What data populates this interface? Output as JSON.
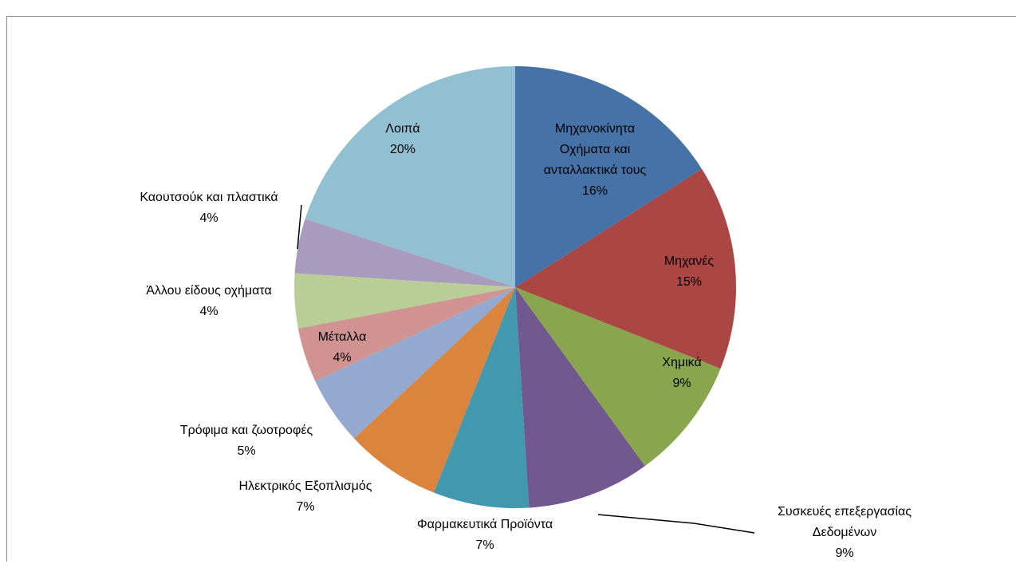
{
  "chart_data": {
    "type": "pie",
    "categories": [
      "Μηχανοκίνητα Οχήματα και ανταλλακτικά τους",
      "Μηχανές",
      "Χημικά",
      "Συσκευές επεξεργασίας Δεδομένων",
      "Φαρμακευτικά Προϊόντα",
      "Ηλεκτρικός Εξοπλισμός",
      "Τρόφιμα και ζωοτροφές",
      "Μέταλλα",
      "Άλλου είδους οχήματα",
      "Καουτσούκ και πλαστικά",
      "Λοιπά"
    ],
    "values": [
      16,
      15,
      9,
      9,
      7,
      7,
      5,
      4,
      4,
      4,
      20
    ],
    "value_labels": [
      "16%",
      "15%",
      "9%",
      "9%",
      "7%",
      "7%",
      "5%",
      "4%",
      "4%",
      "4%",
      "20%"
    ],
    "colors": [
      "#4572a7",
      "#aa4643",
      "#89a54e",
      "#71588f",
      "#4198af",
      "#db843d",
      "#93a9cf",
      "#d19392",
      "#b9cd96",
      "#a99bbd",
      "#92c0d3"
    ]
  }
}
